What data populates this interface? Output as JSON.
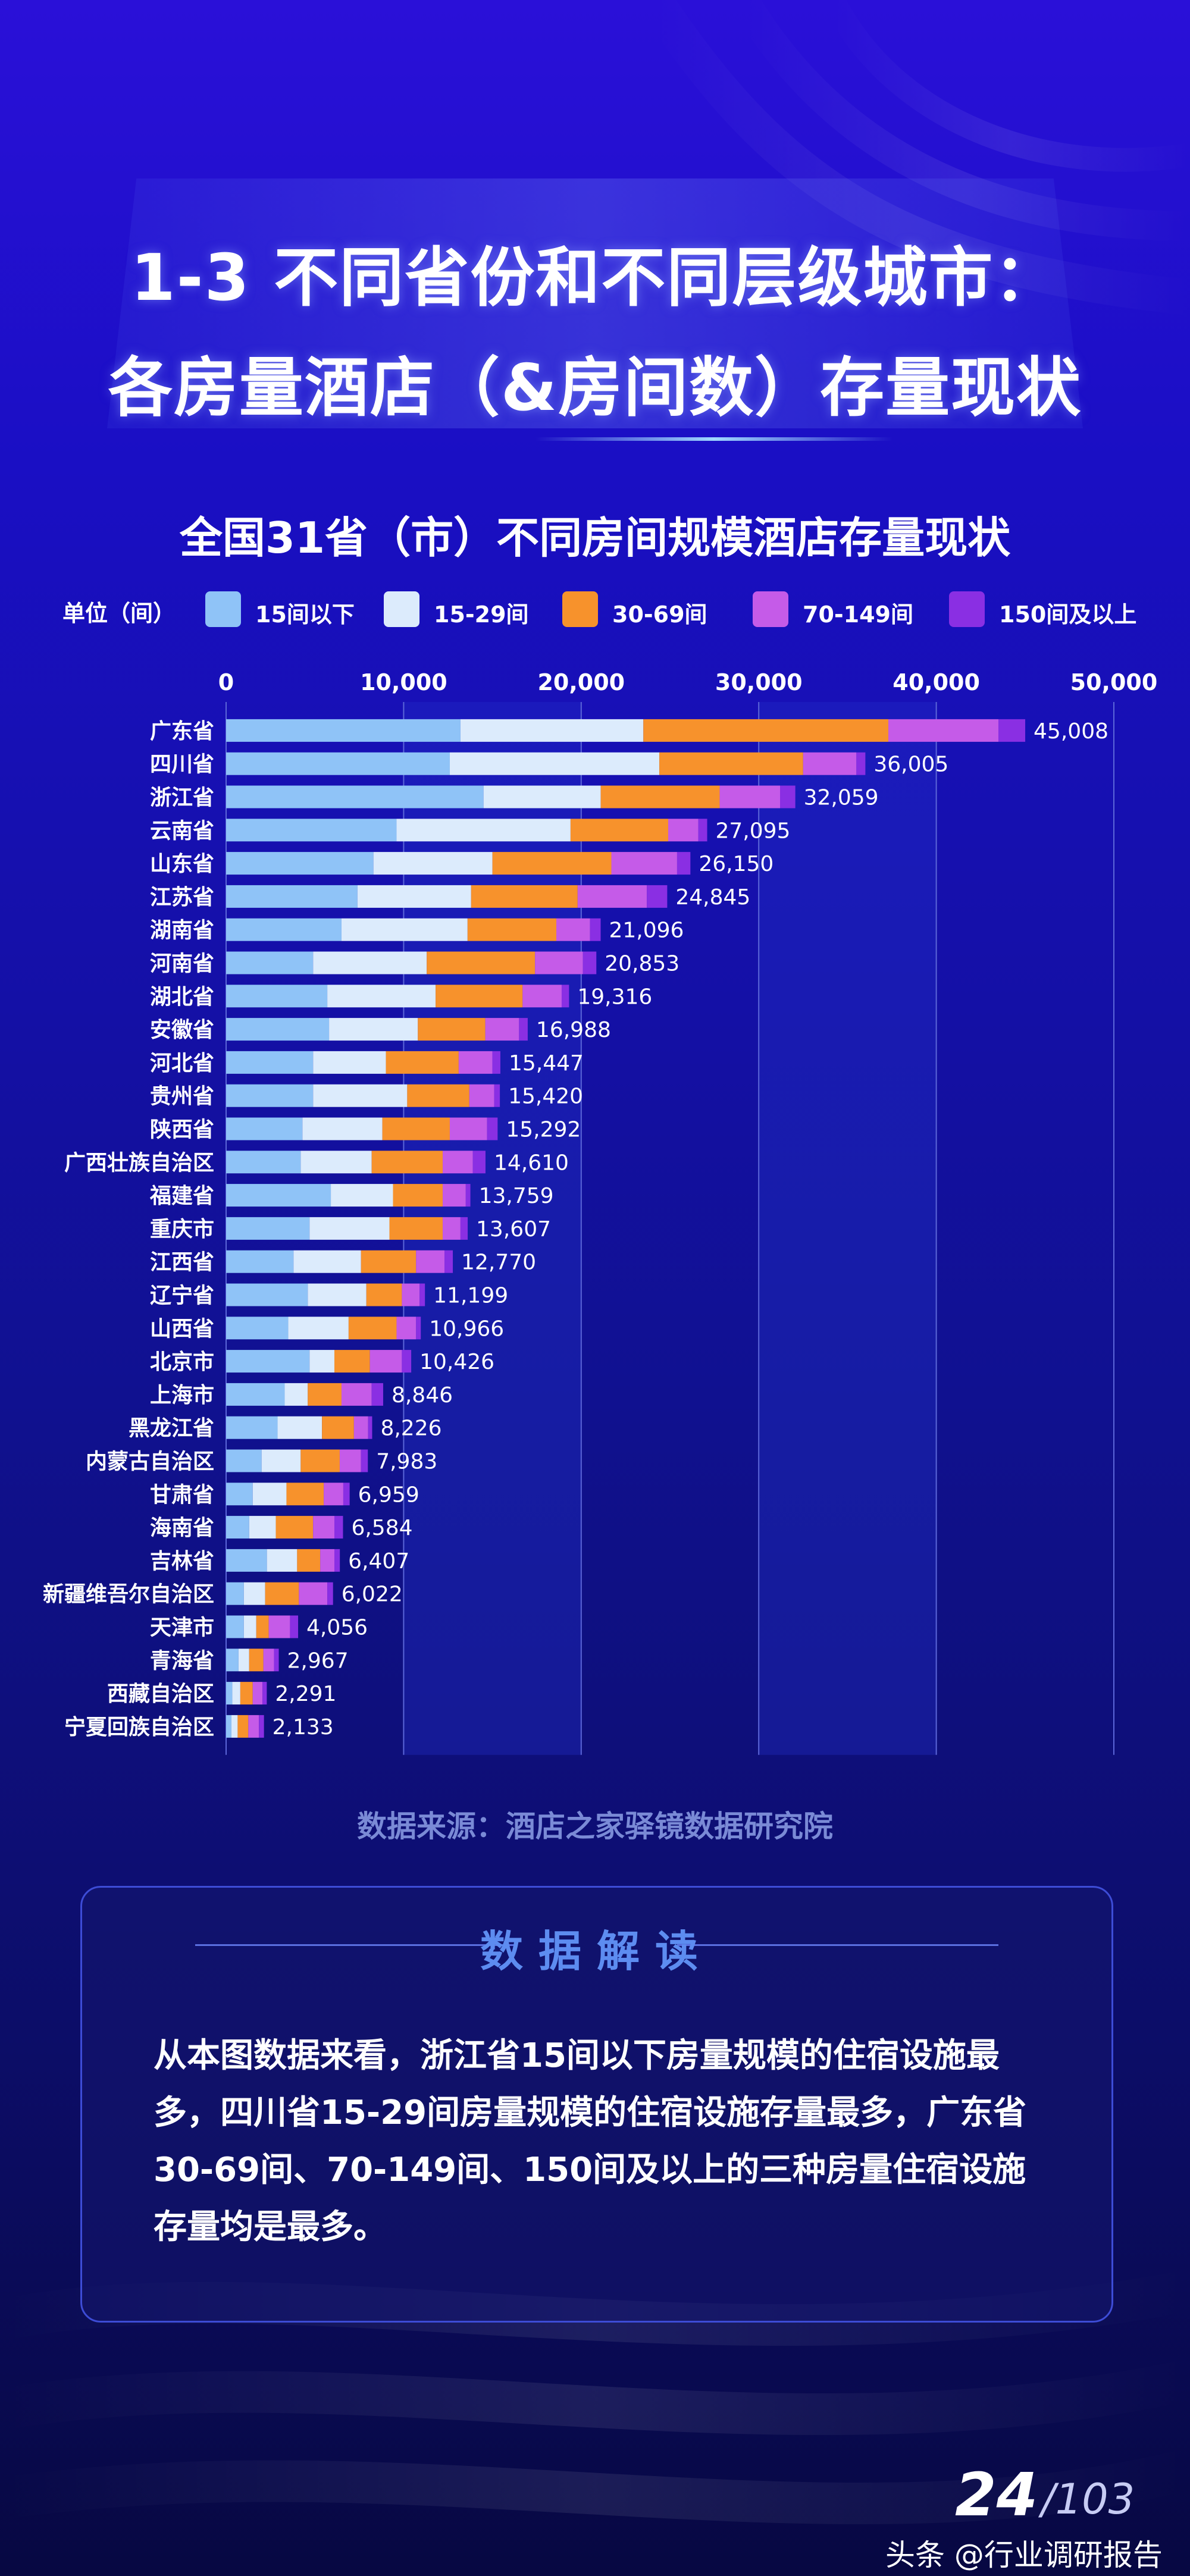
{
  "header": {
    "title_line1": "1-3 不同省份和不同层级城市：",
    "title_line2": "各房量酒店（&房间数）存量现状"
  },
  "chart_data": {
    "type": "bar",
    "orientation": "horizontal",
    "stacked": true,
    "title": "全国31省（市）不同房间规模酒店存量现状",
    "unit": "单位（间）",
    "xlim": [
      0,
      50000
    ],
    "xticks": [
      "0",
      "10,000",
      "20,000",
      "30,000",
      "40,000",
      "50,000"
    ],
    "tick_values": [
      0,
      10000,
      20000,
      30000,
      40000,
      50000
    ],
    "categories": [
      "广东省",
      "四川省",
      "浙江省",
      "云南省",
      "山东省",
      "江苏省",
      "湖南省",
      "河南省",
      "湖北省",
      "安徽省",
      "河北省",
      "贵州省",
      "陕西省",
      "广西壮族自治区",
      "福建省",
      "重庆市",
      "江西省",
      "辽宁省",
      "山西省",
      "北京市",
      "上海市",
      "黑龙江省",
      "内蒙古自治区",
      "甘肃省",
      "海南省",
      "吉林省",
      "新疆维吾尔自治区",
      "天津市",
      "青海省",
      "西藏自治区",
      "宁夏回族自治区"
    ],
    "series": [
      {
        "name": "15间以下",
        "color": "#8fc3f7",
        "values": [
          13200,
          12600,
          14500,
          9600,
          8300,
          7400,
          6500,
          4900,
          5700,
          5800,
          4900,
          4900,
          4300,
          4200,
          5900,
          4700,
          3800,
          4600,
          3500,
          4700,
          3300,
          2900,
          2000,
          1500,
          1300,
          2300,
          1000,
          1000,
          700,
          350,
          300
        ]
      },
      {
        "name": "15-29间",
        "color": "#dcebfc",
        "values": [
          10300,
          11800,
          6600,
          9800,
          6700,
          6400,
          7100,
          6400,
          6100,
          5000,
          4100,
          5300,
          4500,
          4000,
          3500,
          4500,
          3800,
          3300,
          3400,
          1400,
          1300,
          2500,
          2200,
          1900,
          1500,
          1700,
          1200,
          700,
          600,
          450,
          350
        ]
      },
      {
        "name": "30-69间",
        "color": "#f7922c",
        "values": [
          13800,
          8100,
          6700,
          5500,
          6700,
          6000,
          5000,
          6100,
          4900,
          3800,
          4100,
          3500,
          3800,
          4000,
          2800,
          3000,
          3100,
          2000,
          2700,
          2000,
          1900,
          1800,
          2200,
          2100,
          2100,
          1300,
          1900,
          700,
          800,
          700,
          600
        ]
      },
      {
        "name": "70-149间",
        "color": "#c55be8",
        "values": [
          6200,
          3000,
          3400,
          1700,
          3700,
          3900,
          1900,
          2700,
          2200,
          1900,
          1900,
          1400,
          2100,
          1700,
          1300,
          1000,
          1600,
          1000,
          1100,
          1800,
          1700,
          800,
          1200,
          1100,
          1200,
          800,
          1600,
          1200,
          600,
          550,
          600
        ]
      },
      {
        "name": "150间及以上",
        "color": "#8a2fe3",
        "values": [
          1508,
          505,
          859,
          495,
          750,
          1145,
          596,
          753,
          416,
          488,
          447,
          320,
          592,
          710,
          259,
          407,
          470,
          299,
          266,
          526,
          646,
          226,
          383,
          359,
          484,
          307,
          322,
          456,
          267,
          241,
          283
        ]
      }
    ],
    "totals": [
      45008,
      36005,
      32059,
      27095,
      26150,
      24845,
      21096,
      20853,
      19316,
      16988,
      15447,
      15420,
      15292,
      14610,
      13759,
      13607,
      12770,
      11199,
      10966,
      10426,
      8846,
      8226,
      7983,
      6959,
      6584,
      6407,
      6022,
      4056,
      2967,
      2291,
      2133
    ],
    "total_labels": [
      "45,008",
      "36,005",
      "32,059",
      "27,095",
      "26,150",
      "24,845",
      "21,096",
      "20,853",
      "19,316",
      "16,988",
      "15,447",
      "15,420",
      "15,292",
      "14,610",
      "13,759",
      "13,607",
      "12,770",
      "11,199",
      "10,966",
      "10,426",
      "8,846",
      "8,226",
      "7,983",
      "6,959",
      "6,584",
      "6,407",
      "6,022",
      "4,056",
      "2,967",
      "2,291",
      "2,133"
    ]
  },
  "source": "数据来源：酒店之家驿镜数据研究院",
  "reading": {
    "title": "数据解读",
    "text": "从本图数据来看，浙江省15间以下房量规模的住宿设施最多，四川省15-29间房量规模的住宿设施存量最多，广东省30-69间、70-149间、150间及以上的三种房量住宿设施存量均是最多。"
  },
  "footer": {
    "page_current": "24",
    "page_total": "/103",
    "watermark": "头条 @行业调研报告"
  }
}
